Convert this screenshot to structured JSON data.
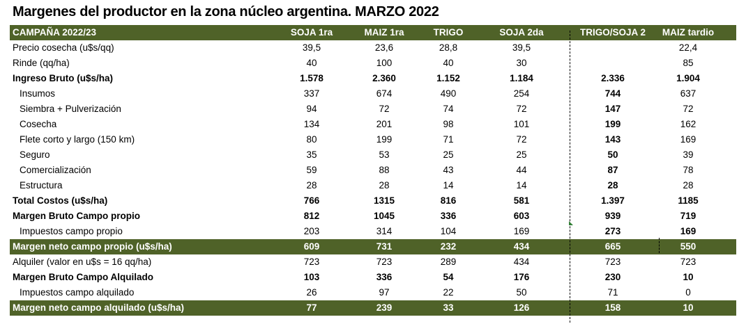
{
  "title": "Margenes del productor en la zona núcleo argentina. MARZO 2022",
  "header": {
    "label": "CAMPAÑA 2022/23",
    "cols": [
      "SOJA 1ra",
      "MAIZ 1ra",
      "TRIGO",
      "SOJA 2da",
      "TRIGO/SOJA 2",
      "MAIZ tardio"
    ]
  },
  "rows": [
    {
      "label": "Precio cosecha (u$s/qq)",
      "values": [
        "39,5",
        "23,6",
        "28,8",
        "39,5",
        "",
        "22,4"
      ]
    },
    {
      "label": "Rinde (qq/ha)",
      "values": [
        "40",
        "100",
        "40",
        "30",
        "",
        "85"
      ]
    },
    {
      "label": "Ingreso Bruto (u$s/ha)",
      "values": [
        "1.578",
        "2.360",
        "1.152",
        "1.184",
        "2.336",
        "1.904"
      ]
    },
    {
      "label": "Insumos",
      "values": [
        "337",
        "674",
        "490",
        "254",
        "744",
        "637"
      ]
    },
    {
      "label": "Siembra + Pulverización",
      "values": [
        "94",
        "72",
        "74",
        "72",
        "147",
        "72"
      ]
    },
    {
      "label": "Cosecha",
      "values": [
        "134",
        "201",
        "98",
        "101",
        "199",
        "162"
      ]
    },
    {
      "label": "Flete corto y largo (150 km)",
      "values": [
        "80",
        "199",
        "71",
        "72",
        "143",
        "169"
      ]
    },
    {
      "label": "Seguro",
      "values": [
        "35",
        "53",
        "25",
        "25",
        "50",
        "39"
      ]
    },
    {
      "label": "Comercialización",
      "values": [
        "59",
        "88",
        "43",
        "44",
        "87",
        "78"
      ]
    },
    {
      "label": "Estructura",
      "values": [
        "28",
        "28",
        "14",
        "14",
        "28",
        "28"
      ]
    },
    {
      "label": "Total Costos (u$s/ha)",
      "values": [
        "766",
        "1315",
        "816",
        "581",
        "1.397",
        "1185"
      ]
    },
    {
      "label": "Margen Bruto Campo propio",
      "values": [
        "812",
        "1045",
        "336",
        "603",
        "939",
        "719"
      ]
    },
    {
      "label": "Impuestos  campo propio",
      "values": [
        "203",
        "314",
        "104",
        "169",
        "273",
        "169"
      ]
    },
    {
      "label": "Margen neto campo propio (u$s/ha)",
      "values": [
        "609",
        "731",
        "232",
        "434",
        "665",
        "550"
      ]
    },
    {
      "label": "Alquiler (valor en u$s = 16 qq/ha)",
      "values": [
        "723",
        "723",
        "289",
        "434",
        "723",
        "723"
      ]
    },
    {
      "label": "Margen Bruto Campo Alquilado",
      "values": [
        "103",
        "336",
        "54",
        "176",
        "230",
        "10"
      ]
    },
    {
      "label": "Impuestos campo alquilado",
      "values": [
        "26",
        "97",
        "22",
        "50",
        "71",
        "0"
      ]
    },
    {
      "label": "Margen neto campo alquilado (u$s/ha)",
      "values": [
        "77",
        "239",
        "33",
        "126",
        "158",
        "10"
      ]
    }
  ],
  "colors": {
    "band": "#4f6228",
    "band_text": "#ffffff"
  }
}
